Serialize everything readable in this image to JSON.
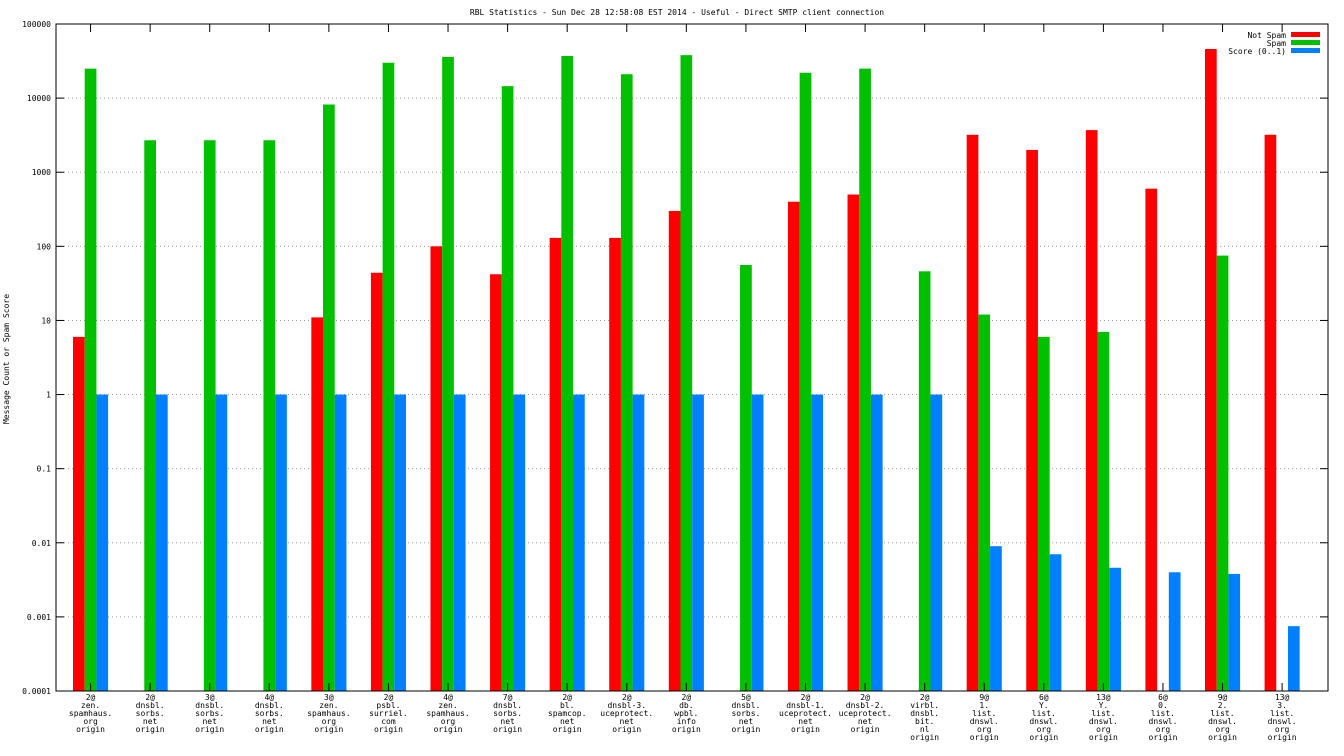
{
  "chart_data": {
    "type": "bar",
    "scale": "log",
    "title": "RBL Statistics - Sun Dec 28 12:58:08 EST 2014 - Useful - Direct SMTP client connection",
    "ylabel": "Message Count or Spam Score",
    "ylim": [
      0.0001,
      100000
    ],
    "ytick_labels": [
      "100000",
      "10000",
      "1000",
      "100",
      "10",
      "1",
      "0.1",
      "0.01",
      "0.001",
      "0.0001"
    ],
    "categories": [
      [
        "2@",
        "zen.",
        "spamhaus.",
        "org",
        "origin"
      ],
      [
        "2@",
        "dnsbl.",
        "sorbs.",
        "net",
        "origin"
      ],
      [
        "3@",
        "dnsbl.",
        "sorbs.",
        "net",
        "origin"
      ],
      [
        "4@",
        "dnsbl.",
        "sorbs.",
        "net",
        "origin"
      ],
      [
        "3@",
        "zen.",
        "spamhaus.",
        "org",
        "origin"
      ],
      [
        "2@",
        "psbl.",
        "surriel.",
        "com",
        "origin"
      ],
      [
        "4@",
        "zen.",
        "spamhaus.",
        "org",
        "origin"
      ],
      [
        "7@",
        "dnsbl.",
        "sorbs.",
        "net",
        "origin"
      ],
      [
        "2@",
        "bl.",
        "spamcop.",
        "net",
        "origin"
      ],
      [
        "2@",
        "dnsbl-3.",
        "uceprotect.",
        "net",
        "origin"
      ],
      [
        "2@",
        "db.",
        "wpbl.",
        "info",
        "origin"
      ],
      [
        "5@",
        "dnsbl.",
        "sorbs.",
        "net",
        "origin"
      ],
      [
        "2@",
        "dnsbl-1.",
        "uceprotect.",
        "net",
        "origin"
      ],
      [
        "2@",
        "dnsbl-2.",
        "uceprotect.",
        "net",
        "origin"
      ],
      [
        "2@",
        "virbl.",
        "dnsbl.",
        "bit.",
        "nl",
        "origin"
      ],
      [
        "9@",
        "1.",
        "list.",
        "dnswl.",
        "org",
        "origin"
      ],
      [
        "6@",
        "Y.",
        "list.",
        "dnswl.",
        "org",
        "origin"
      ],
      [
        "13@",
        "Y.",
        "list.",
        "dnswl.",
        "org",
        "origin"
      ],
      [
        "6@",
        "0.",
        "list.",
        "dnswl.",
        "org",
        "origin"
      ],
      [
        "9@",
        "2.",
        "list.",
        "dnswl.",
        "org",
        "origin"
      ],
      [
        "13@",
        "3.",
        "list.",
        "dnswl.",
        "org",
        "origin"
      ]
    ],
    "series": [
      {
        "name": "Not Spam",
        "color": "#ff0000",
        "values": [
          6,
          null,
          null,
          null,
          11,
          44,
          100,
          42,
          130,
          130,
          300,
          null,
          400,
          500,
          null,
          3200,
          2000,
          3700,
          600,
          46000,
          3200
        ]
      },
      {
        "name": "Spam",
        "color": "#00c000",
        "values": [
          25000,
          2700,
          2700,
          2700,
          8200,
          30000,
          36000,
          14500,
          37000,
          21000,
          38000,
          56,
          22000,
          25000,
          46,
          12,
          6,
          7,
          null,
          75,
          null
        ]
      },
      {
        "name": "Score (0..1)",
        "color": "#0080ff",
        "values": [
          1,
          1,
          1,
          1,
          1,
          1,
          1,
          1,
          1,
          1,
          1,
          1,
          1,
          1,
          1,
          0.009,
          0.007,
          0.0046,
          0.004,
          0.0038,
          0.00075
        ]
      }
    ],
    "legend_position": "top-right",
    "grid": true
  }
}
